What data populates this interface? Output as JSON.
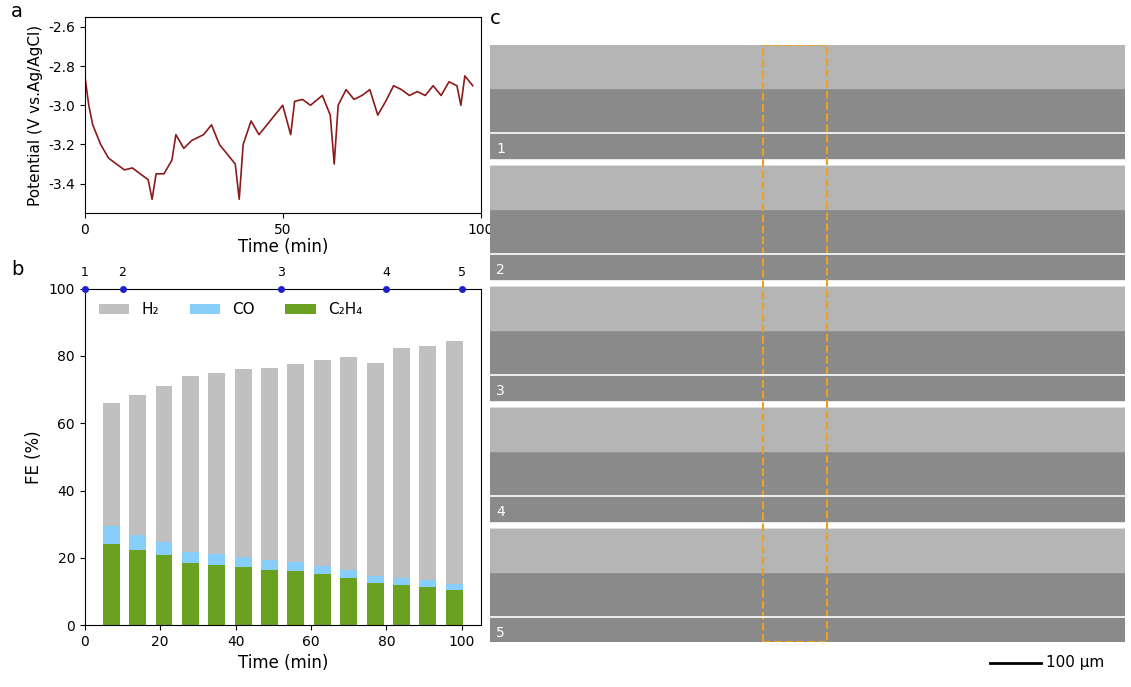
{
  "chart_data": [
    {
      "panel_label": "a",
      "type": "line",
      "x_label": "Time (min)",
      "y_label": "Potential (V vs.Ag/AgCl)",
      "x": [
        0,
        1,
        2,
        4,
        6,
        8,
        10,
        12,
        14,
        16,
        17,
        18,
        20,
        22,
        23,
        25,
        27,
        30,
        32,
        34,
        36,
        38,
        39,
        40,
        42,
        44,
        46,
        48,
        50,
        52,
        53,
        55,
        57,
        60,
        62,
        63,
        64,
        66,
        68,
        70,
        72,
        74,
        76,
        78,
        80,
        82,
        84,
        86,
        88,
        90,
        92,
        94,
        95,
        96,
        98
      ],
      "series": [
        {
          "name": "Potential",
          "color": "#8b1a1a",
          "values": [
            -2.85,
            -3.0,
            -3.1,
            -3.2,
            -3.27,
            -3.3,
            -3.33,
            -3.32,
            -3.35,
            -3.38,
            -3.48,
            -3.35,
            -3.35,
            -3.28,
            -3.15,
            -3.22,
            -3.18,
            -3.15,
            -3.1,
            -3.2,
            -3.25,
            -3.3,
            -3.48,
            -3.2,
            -3.08,
            -3.15,
            -3.1,
            -3.05,
            -3.0,
            -3.15,
            -2.98,
            -2.97,
            -3.0,
            -2.95,
            -3.05,
            -3.3,
            -3.0,
            -2.92,
            -2.97,
            -2.95,
            -2.92,
            -3.05,
            -2.98,
            -2.9,
            -2.92,
            -2.95,
            -2.93,
            -2.95,
            -2.9,
            -2.95,
            -2.88,
            -2.9,
            -3.0,
            -2.85,
            -2.9
          ]
        }
      ],
      "xlim": [
        0,
        100
      ],
      "xticks": [
        0,
        50,
        100
      ],
      "ylim": [
        -3.55,
        -2.55
      ],
      "yticks": [
        -3.4,
        -3.2,
        -3.0,
        -2.8,
        -2.6
      ]
    },
    {
      "panel_label": "b",
      "type": "bar",
      "stacked": true,
      "x_label": "Time (min)",
      "y_label": "FE (%)",
      "x": [
        7,
        14,
        21,
        28,
        35,
        42,
        49,
        56,
        63,
        70,
        77,
        84,
        91,
        98
      ],
      "series": [
        {
          "name": "C₂H₄",
          "color": "#6aa121",
          "values": [
            24,
            22.3,
            20.8,
            18.5,
            18,
            17.3,
            16.5,
            16,
            15.2,
            14,
            12.5,
            12,
            11.3,
            10.3
          ]
        },
        {
          "name": "CO",
          "color": "#87cefa",
          "values": [
            5.5,
            4.5,
            4,
            3.3,
            3.2,
            3,
            2.8,
            2.7,
            2.5,
            2.3,
            2.2,
            2,
            2,
            1.8
          ]
        },
        {
          "name": "H₂",
          "color": "#c0c0c0",
          "values": [
            36.5,
            41.7,
            46.2,
            52.2,
            53.8,
            55.7,
            57.2,
            58.8,
            61,
            63.3,
            63.3,
            68.2,
            69.5,
            72.4
          ]
        }
      ],
      "legend_order": [
        "H₂",
        "CO",
        "C₂H₄"
      ],
      "legend": "upper left",
      "xlim": [
        0,
        105
      ],
      "xticks": [
        0,
        20,
        40,
        60,
        80,
        100
      ],
      "ylim": [
        0,
        100
      ],
      "yticks": [
        0,
        20,
        40,
        60,
        80,
        100
      ],
      "markers": {
        "x": [
          0,
          10,
          52,
          80,
          100
        ],
        "labels": [
          "1",
          "2",
          "3",
          "4",
          "5"
        ],
        "color": "#1f1fd0"
      }
    }
  ],
  "image_panel": {
    "panel_label": "c",
    "labels": [
      "1",
      "2",
      "3",
      "4",
      "5"
    ],
    "scale_bar": "100 µm"
  }
}
